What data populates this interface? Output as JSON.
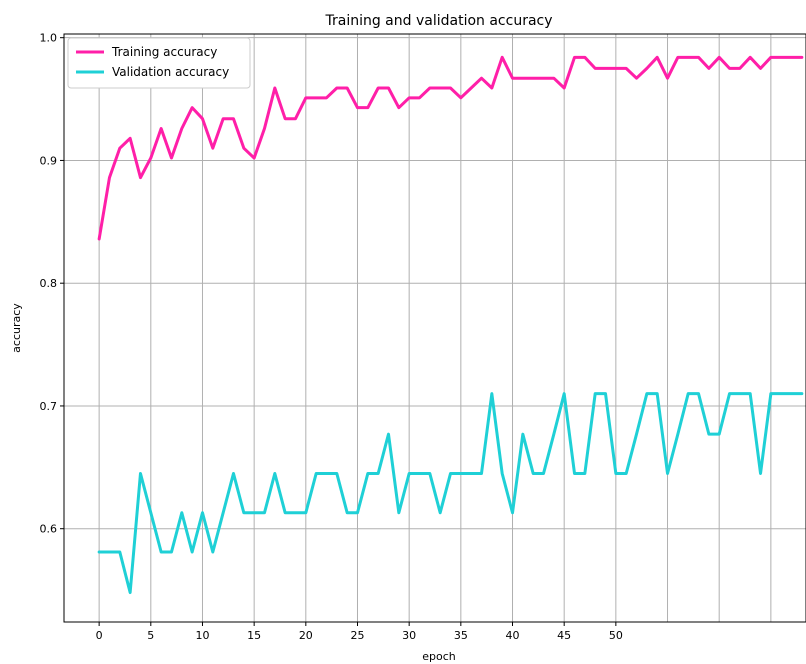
{
  "chart_data": {
    "type": "line",
    "title": "Training and validation accuracy",
    "xlabel": "epoch",
    "ylabel": "accuracy",
    "xlim": [
      -3.4,
      68.4
    ],
    "ylim": [
      0.524,
      1.003
    ],
    "grid": true,
    "legend_position": "top-left",
    "x_ticks": [
      0,
      5,
      10,
      15,
      20,
      25,
      30,
      35,
      40,
      45,
      50
    ],
    "x_tick_labels": [
      "0",
      "5",
      "10",
      "15",
      "20",
      "25",
      "30",
      "35",
      "40",
      "45",
      "50"
    ],
    "x_grid": [
      0,
      5,
      10,
      15,
      20,
      25,
      30,
      35,
      40,
      45,
      50,
      55,
      60,
      65
    ],
    "y_ticks": [
      0.6,
      0.7,
      0.8,
      0.9,
      1.0
    ],
    "y_tick_labels": [
      "0.6",
      "0.7",
      "0.8",
      "0.9",
      "1.0"
    ],
    "x": [
      0,
      1,
      2,
      3,
      4,
      5,
      6,
      7,
      8,
      9,
      10,
      11,
      12,
      13,
      14,
      15,
      16,
      17,
      18,
      19,
      20,
      21,
      22,
      23,
      24,
      25,
      26,
      27,
      28,
      29,
      30,
      31,
      32,
      33,
      34,
      35,
      36,
      37,
      38,
      39,
      40,
      41,
      42,
      43,
      44,
      45,
      46,
      47,
      48,
      49,
      50,
      51,
      52,
      53,
      54,
      55,
      56,
      57,
      58,
      59,
      60,
      61,
      62,
      63,
      64,
      65,
      66,
      67,
      68
    ],
    "series": [
      {
        "name": "Training accuracy",
        "color": "#ff1fa8",
        "values": [
          0.836,
          0.886,
          0.91,
          0.918,
          0.886,
          0.902,
          0.926,
          0.902,
          0.926,
          0.943,
          0.934,
          0.91,
          0.934,
          0.934,
          0.91,
          0.902,
          0.926,
          0.959,
          0.934,
          0.934,
          0.951,
          0.951,
          0.951,
          0.959,
          0.959,
          0.943,
          0.943,
          0.959,
          0.959,
          0.943,
          0.951,
          0.951,
          0.959,
          0.959,
          0.959,
          0.951,
          0.959,
          0.967,
          0.959,
          0.984,
          0.967,
          0.967,
          0.967,
          0.967,
          0.967,
          0.959,
          0.984,
          0.984,
          0.975,
          0.975,
          0.975,
          0.975,
          0.967,
          0.975,
          0.984,
          0.967,
          0.984,
          0.984,
          0.984,
          0.975,
          0.984,
          0.975,
          0.975,
          0.984,
          0.975,
          0.984,
          0.984,
          0.984,
          0.984
        ]
      },
      {
        "name": "Validation accuracy",
        "color": "#1fd0d6",
        "values": [
          0.581,
          0.581,
          0.581,
          0.548,
          0.645,
          0.613,
          0.581,
          0.581,
          0.613,
          0.581,
          0.613,
          0.581,
          0.613,
          0.645,
          0.613,
          0.613,
          0.613,
          0.645,
          0.613,
          0.613,
          0.613,
          0.645,
          0.645,
          0.645,
          0.613,
          0.613,
          0.645,
          0.645,
          0.677,
          0.613,
          0.645,
          0.645,
          0.645,
          0.613,
          0.645,
          0.645,
          0.645,
          0.645,
          0.71,
          0.645,
          0.613,
          0.677,
          0.645,
          0.645,
          0.677,
          0.71,
          0.645,
          0.645,
          0.71,
          0.71,
          0.645,
          0.645,
          0.677,
          0.71,
          0.71,
          0.645,
          0.677,
          0.71,
          0.71,
          0.677,
          0.677,
          0.71,
          0.71,
          0.71,
          0.645,
          0.71,
          0.71,
          0.71,
          0.71
        ]
      }
    ]
  }
}
